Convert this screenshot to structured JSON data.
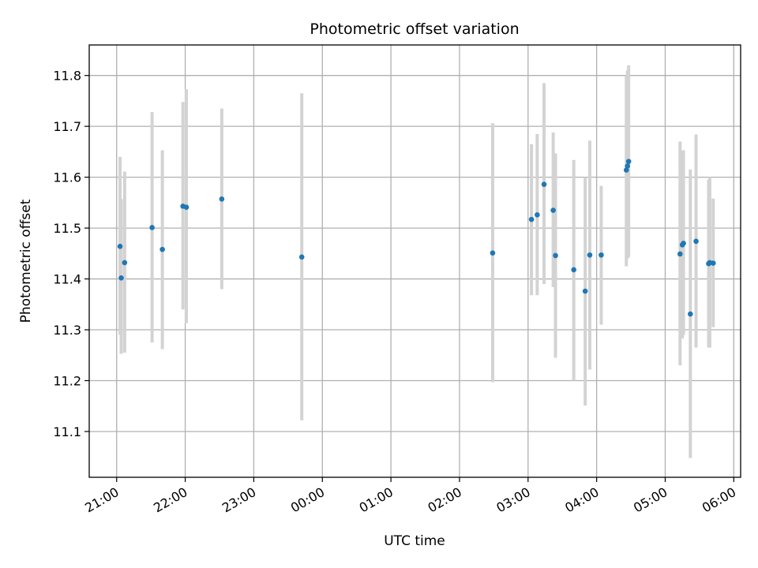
{
  "chart_data": {
    "type": "scatter",
    "title": "Photometric offset variation",
    "xlabel": "UTC time",
    "ylabel": "Photometric offset",
    "x_start": "20:36",
    "x_end": "06:06",
    "ylim": [
      11.01,
      11.86
    ],
    "x_ticks": [
      "21:00",
      "22:00",
      "23:00",
      "00:00",
      "01:00",
      "02:00",
      "03:00",
      "04:00",
      "05:00",
      "06:00"
    ],
    "y_ticks": [
      "11.1",
      "11.2",
      "11.3",
      "11.4",
      "11.5",
      "11.6",
      "11.7",
      "11.8"
    ],
    "grid": true,
    "colors": {
      "point": "#1f77b4",
      "errorbar": "#d3d3d3"
    },
    "points": [
      {
        "x": "21:03",
        "y": 11.464,
        "low": 11.29,
        "high": 11.64
      },
      {
        "x": "21:04",
        "y": 11.402,
        "low": 11.253,
        "high": 11.557
      },
      {
        "x": "21:07",
        "y": 11.432,
        "low": 11.255,
        "high": 11.611
      },
      {
        "x": "21:31",
        "y": 11.501,
        "low": 11.275,
        "high": 11.728
      },
      {
        "x": "21:40",
        "y": 11.458,
        "low": 11.262,
        "high": 11.653
      },
      {
        "x": "21:58",
        "y": 11.543,
        "low": 11.34,
        "high": 11.748
      },
      {
        "x": "22:01",
        "y": 11.541,
        "low": 11.313,
        "high": 11.773
      },
      {
        "x": "22:32",
        "y": 11.557,
        "low": 11.38,
        "high": 11.735
      },
      {
        "x": "23:42",
        "y": 11.443,
        "low": 11.122,
        "high": 11.765
      },
      {
        "x": "02:29",
        "y": 11.451,
        "low": 11.197,
        "high": 11.706
      },
      {
        "x": "03:03",
        "y": 11.517,
        "low": 11.368,
        "high": 11.665
      },
      {
        "x": "03:08",
        "y": 11.526,
        "low": 11.368,
        "high": 11.685
      },
      {
        "x": "03:14",
        "y": 11.586,
        "low": 11.39,
        "high": 11.785
      },
      {
        "x": "03:22",
        "y": 11.535,
        "low": 11.384,
        "high": 11.688
      },
      {
        "x": "03:24",
        "y": 11.446,
        "low": 11.245,
        "high": 11.647
      },
      {
        "x": "03:40",
        "y": 11.418,
        "low": 11.2,
        "high": 11.634
      },
      {
        "x": "03:50",
        "y": 11.376,
        "low": 11.151,
        "high": 11.6
      },
      {
        "x": "03:54",
        "y": 11.447,
        "low": 11.222,
        "high": 11.672
      },
      {
        "x": "04:04",
        "y": 11.447,
        "low": 11.31,
        "high": 11.583
      },
      {
        "x": "04:26",
        "y": 11.614,
        "low": 11.425,
        "high": 11.8
      },
      {
        "x": "04:27",
        "y": 11.622,
        "low": 11.44,
        "high": 11.81
      },
      {
        "x": "04:28",
        "y": 11.631,
        "low": 11.443,
        "high": 11.82
      },
      {
        "x": "05:13",
        "y": 11.449,
        "low": 11.23,
        "high": 11.67
      },
      {
        "x": "05:15",
        "y": 11.467,
        "low": 11.283,
        "high": 11.652
      },
      {
        "x": "05:16",
        "y": 11.47,
        "low": 11.29,
        "high": 11.653
      },
      {
        "x": "05:22",
        "y": 11.331,
        "low": 11.048,
        "high": 11.615
      },
      {
        "x": "05:27",
        "y": 11.474,
        "low": 11.265,
        "high": 11.684
      },
      {
        "x": "05:38",
        "y": 11.43,
        "low": 11.265,
        "high": 11.595
      },
      {
        "x": "05:39",
        "y": 11.432,
        "low": 11.265,
        "high": 11.6
      },
      {
        "x": "05:42",
        "y": 11.431,
        "low": 11.305,
        "high": 11.558
      }
    ]
  }
}
